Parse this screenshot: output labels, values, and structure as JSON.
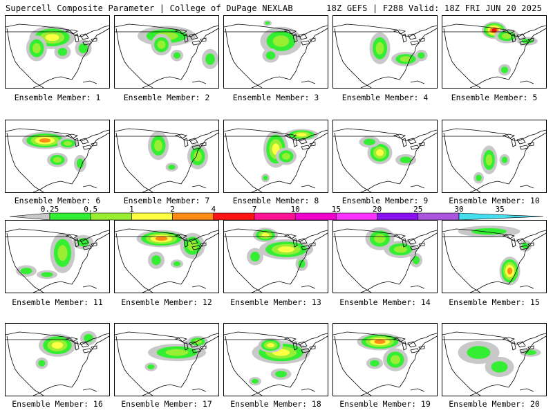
{
  "header": {
    "title": "Supercell Composite Parameter | College of DuPage NEXLAB",
    "run_info": "18Z GEFS | F288 Valid: 18Z FRI JUN 20 2025"
  },
  "members": [
    {
      "label": "Ensemble Member: 1",
      "hotspots": [
        [
          0.45,
          0.3,
          0.22,
          0.16,
          3
        ],
        [
          0.3,
          0.45,
          0.1,
          0.18,
          2
        ],
        [
          0.55,
          0.5,
          0.08,
          0.1,
          1
        ],
        [
          0.75,
          0.45,
          0.08,
          0.12,
          1
        ]
      ]
    },
    {
      "label": "Ensemble Member: 2",
      "hotspots": [
        [
          0.5,
          0.28,
          0.28,
          0.14,
          2
        ],
        [
          0.45,
          0.4,
          0.1,
          0.15,
          2
        ],
        [
          0.92,
          0.6,
          0.08,
          0.14,
          1
        ],
        [
          0.6,
          0.55,
          0.06,
          0.08,
          1
        ]
      ]
    },
    {
      "label": "Ensemble Member: 3",
      "hotspots": [
        [
          0.55,
          0.35,
          0.2,
          0.2,
          2
        ],
        [
          0.45,
          0.55,
          0.08,
          0.1,
          1
        ],
        [
          0.42,
          0.1,
          0.04,
          0.04,
          1
        ]
      ]
    },
    {
      "label": "Ensemble Member: 4",
      "hotspots": [
        [
          0.45,
          0.45,
          0.1,
          0.22,
          2
        ],
        [
          0.7,
          0.6,
          0.14,
          0.1,
          2
        ],
        [
          0.85,
          0.55,
          0.06,
          0.08,
          1
        ]
      ]
    },
    {
      "label": "Ensemble Member: 5",
      "hotspots": [
        [
          0.5,
          0.2,
          0.12,
          0.12,
          5
        ],
        [
          0.62,
          0.28,
          0.12,
          0.1,
          2
        ],
        [
          0.82,
          0.35,
          0.1,
          0.06,
          1
        ],
        [
          0.6,
          0.75,
          0.06,
          0.08,
          1
        ]
      ]
    },
    {
      "label": "Ensemble Member: 6",
      "hotspots": [
        [
          0.38,
          0.28,
          0.22,
          0.12,
          4
        ],
        [
          0.6,
          0.32,
          0.1,
          0.08,
          2
        ],
        [
          0.5,
          0.55,
          0.1,
          0.1,
          2
        ],
        [
          0.72,
          0.6,
          0.06,
          0.12,
          1
        ]
      ]
    },
    {
      "label": "Ensemble Member: 7",
      "hotspots": [
        [
          0.42,
          0.35,
          0.1,
          0.2,
          2
        ],
        [
          0.8,
          0.5,
          0.1,
          0.18,
          2
        ],
        [
          0.55,
          0.65,
          0.06,
          0.06,
          1
        ]
      ]
    },
    {
      "label": "Ensemble Member: 8",
      "hotspots": [
        [
          0.5,
          0.4,
          0.12,
          0.26,
          3
        ],
        [
          0.75,
          0.2,
          0.16,
          0.08,
          3
        ],
        [
          0.6,
          0.5,
          0.1,
          0.12,
          2
        ],
        [
          0.4,
          0.8,
          0.04,
          0.06,
          1
        ]
      ]
    },
    {
      "label": "Ensemble Member: 9",
      "hotspots": [
        [
          0.45,
          0.45,
          0.12,
          0.16,
          3
        ],
        [
          0.35,
          0.3,
          0.1,
          0.08,
          1
        ],
        [
          0.7,
          0.55,
          0.1,
          0.08,
          1
        ]
      ]
    },
    {
      "label": "Ensemble Member: 10",
      "hotspots": [
        [
          0.45,
          0.55,
          0.08,
          0.2,
          2
        ],
        [
          0.35,
          0.8,
          0.05,
          0.08,
          1
        ],
        [
          0.6,
          0.55,
          0.05,
          0.08,
          1
        ]
      ]
    },
    {
      "label": "Ensemble Member: 11",
      "hotspots": [
        [
          0.55,
          0.45,
          0.12,
          0.28,
          2
        ],
        [
          0.2,
          0.7,
          0.1,
          0.08,
          1
        ],
        [
          0.4,
          0.75,
          0.1,
          0.06,
          1
        ],
        [
          0.75,
          0.3,
          0.1,
          0.1,
          1
        ]
      ]
    },
    {
      "label": "Ensemble Member: 12",
      "hotspots": [
        [
          0.45,
          0.25,
          0.24,
          0.12,
          4
        ],
        [
          0.75,
          0.35,
          0.12,
          0.18,
          2
        ],
        [
          0.4,
          0.55,
          0.08,
          0.12,
          1
        ],
        [
          0.6,
          0.6,
          0.06,
          0.06,
          1
        ]
      ]
    },
    {
      "label": "Ensemble Member: 13",
      "hotspots": [
        [
          0.4,
          0.2,
          0.12,
          0.1,
          3
        ],
        [
          0.6,
          0.4,
          0.26,
          0.14,
          3
        ],
        [
          0.3,
          0.5,
          0.08,
          0.12,
          1
        ],
        [
          0.75,
          0.6,
          0.06,
          0.1,
          1
        ]
      ]
    },
    {
      "label": "Ensemble Member: 14",
      "hotspots": [
        [
          0.45,
          0.25,
          0.14,
          0.16,
          2
        ],
        [
          0.65,
          0.4,
          0.16,
          0.12,
          2
        ],
        [
          0.8,
          0.55,
          0.06,
          0.1,
          1
        ]
      ]
    },
    {
      "label": "Ensemble Member: 15",
      "hotspots": [
        [
          0.65,
          0.7,
          0.1,
          0.2,
          4
        ],
        [
          0.45,
          0.15,
          0.3,
          0.08,
          1
        ],
        [
          0.8,
          0.35,
          0.06,
          0.08,
          1
        ]
      ]
    },
    {
      "label": "Ensemble Member: 16",
      "hotspots": [
        [
          0.5,
          0.3,
          0.18,
          0.16,
          3
        ],
        [
          0.8,
          0.2,
          0.08,
          0.1,
          1
        ],
        [
          0.35,
          0.55,
          0.06,
          0.08,
          1
        ]
      ]
    },
    {
      "label": "Ensemble Member: 17",
      "hotspots": [
        [
          0.6,
          0.4,
          0.28,
          0.12,
          2
        ],
        [
          0.8,
          0.25,
          0.1,
          0.08,
          2
        ],
        [
          0.35,
          0.6,
          0.06,
          0.06,
          1
        ]
      ]
    },
    {
      "label": "Ensemble Member: 18",
      "hotspots": [
        [
          0.55,
          0.4,
          0.28,
          0.16,
          3
        ],
        [
          0.45,
          0.3,
          0.12,
          0.1,
          3
        ],
        [
          0.55,
          0.7,
          0.1,
          0.08,
          1
        ],
        [
          0.3,
          0.8,
          0.06,
          0.06,
          1
        ]
      ]
    },
    {
      "label": "Ensemble Member: 19",
      "hotspots": [
        [
          0.45,
          0.25,
          0.22,
          0.12,
          4
        ],
        [
          0.6,
          0.5,
          0.12,
          0.16,
          2
        ],
        [
          0.4,
          0.55,
          0.08,
          0.08,
          1
        ]
      ]
    },
    {
      "label": "Ensemble Member: 20",
      "hotspots": [
        [
          0.35,
          0.4,
          0.2,
          0.16,
          1
        ],
        [
          0.55,
          0.6,
          0.14,
          0.14,
          1
        ],
        [
          0.85,
          0.4,
          0.1,
          0.06,
          1
        ]
      ]
    }
  ],
  "colorbar": {
    "ticks": [
      "0.25",
      "0.5",
      "1",
      "2",
      "4",
      "7",
      "10",
      "15",
      "20",
      "25",
      "30",
      "35"
    ],
    "colors": [
      "#c8c8c8",
      "#33ee33",
      "#99ee33",
      "#ffff44",
      "#ff8c19",
      "#ff1414",
      "#ff1493",
      "#ee00cc",
      "#ff33ff",
      "#8811ee",
      "#aa55dd",
      "#44ddee"
    ]
  }
}
